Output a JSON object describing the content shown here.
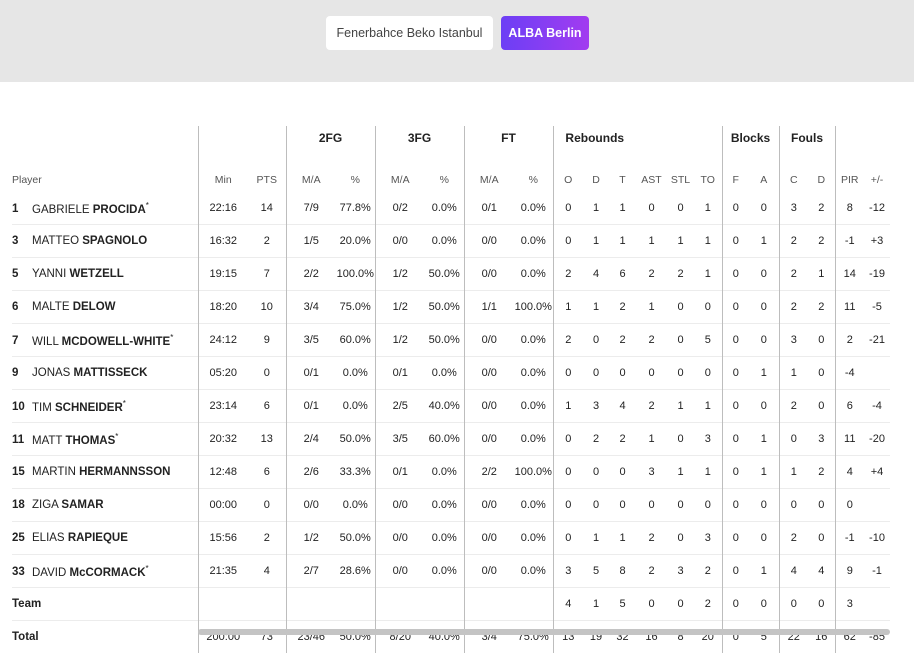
{
  "tabs": [
    {
      "label": "Fenerbahce Beko Istanbul",
      "active": false
    },
    {
      "label": "ALBA Berlin",
      "active": true
    }
  ],
  "accent_color": "#7b3ff2",
  "groups": {
    "fg2": "2FG",
    "fg3": "3FG",
    "ft": "FT",
    "rebounds": "Rebounds",
    "blocks": "Blocks",
    "fouls": "Fouls"
  },
  "columns": {
    "player": "Player",
    "min": "Min",
    "pts": "PTS",
    "fg2_ma": "M/A",
    "fg2_pct": "%",
    "fg3_ma": "M/A",
    "fg3_pct": "%",
    "ft_ma": "M/A",
    "ft_pct": "%",
    "o": "O",
    "d": "D",
    "t": "T",
    "ast": "AST",
    "stl": "STL",
    "to": "TO",
    "bf": "F",
    "ba": "A",
    "fc": "C",
    "fd": "D",
    "pir": "PIR",
    "pm": "+/-"
  },
  "players": [
    {
      "num": "1",
      "first": "GABRIELE",
      "last": "PROCIDA",
      "star": true,
      "min": "22:16",
      "pts": "14",
      "fg2": "7/9",
      "fg2p": "77.8%",
      "fg3": "0/2",
      "fg3p": "0.0%",
      "ft": "0/1",
      "ftp": "0.0%",
      "o": "0",
      "d": "1",
      "t": "1",
      "ast": "0",
      "stl": "0",
      "to": "1",
      "bf": "0",
      "ba": "0",
      "fc": "3",
      "fd": "2",
      "pir": "8",
      "pm": "-12"
    },
    {
      "num": "3",
      "first": "MATTEO",
      "last": "SPAGNOLO",
      "star": false,
      "min": "16:32",
      "pts": "2",
      "fg2": "1/5",
      "fg2p": "20.0%",
      "fg3": "0/0",
      "fg3p": "0.0%",
      "ft": "0/0",
      "ftp": "0.0%",
      "o": "0",
      "d": "1",
      "t": "1",
      "ast": "1",
      "stl": "1",
      "to": "1",
      "bf": "0",
      "ba": "1",
      "fc": "2",
      "fd": "2",
      "pir": "-1",
      "pm": "+3"
    },
    {
      "num": "5",
      "first": "YANNI",
      "last": "WETZELL",
      "star": false,
      "min": "19:15",
      "pts": "7",
      "fg2": "2/2",
      "fg2p": "100.0%",
      "fg3": "1/2",
      "fg3p": "50.0%",
      "ft": "0/0",
      "ftp": "0.0%",
      "o": "2",
      "d": "4",
      "t": "6",
      "ast": "2",
      "stl": "2",
      "to": "1",
      "bf": "0",
      "ba": "0",
      "fc": "2",
      "fd": "1",
      "pir": "14",
      "pm": "-19"
    },
    {
      "num": "6",
      "first": "MALTE",
      "last": "DELOW",
      "star": false,
      "min": "18:20",
      "pts": "10",
      "fg2": "3/4",
      "fg2p": "75.0%",
      "fg3": "1/2",
      "fg3p": "50.0%",
      "ft": "1/1",
      "ftp": "100.0%",
      "o": "1",
      "d": "1",
      "t": "2",
      "ast": "1",
      "stl": "0",
      "to": "0",
      "bf": "0",
      "ba": "0",
      "fc": "2",
      "fd": "2",
      "pir": "11",
      "pm": "-5"
    },
    {
      "num": "7",
      "first": "WILL",
      "last": "MCDOWELL-WHITE",
      "star": true,
      "min": "24:12",
      "pts": "9",
      "fg2": "3/5",
      "fg2p": "60.0%",
      "fg3": "1/2",
      "fg3p": "50.0%",
      "ft": "0/0",
      "ftp": "0.0%",
      "o": "2",
      "d": "0",
      "t": "2",
      "ast": "2",
      "stl": "0",
      "to": "5",
      "bf": "0",
      "ba": "0",
      "fc": "3",
      "fd": "0",
      "pir": "2",
      "pm": "-21"
    },
    {
      "num": "9",
      "first": "JONAS",
      "last": "MATTISSECK",
      "star": false,
      "min": "05:20",
      "pts": "0",
      "fg2": "0/1",
      "fg2p": "0.0%",
      "fg3": "0/1",
      "fg3p": "0.0%",
      "ft": "0/0",
      "ftp": "0.0%",
      "o": "0",
      "d": "0",
      "t": "0",
      "ast": "0",
      "stl": "0",
      "to": "0",
      "bf": "0",
      "ba": "1",
      "fc": "1",
      "fd": "0",
      "pir": "-4",
      "pm": ""
    },
    {
      "num": "10",
      "first": "TIM",
      "last": "SCHNEIDER",
      "star": true,
      "min": "23:14",
      "pts": "6",
      "fg2": "0/1",
      "fg2p": "0.0%",
      "fg3": "2/5",
      "fg3p": "40.0%",
      "ft": "0/0",
      "ftp": "0.0%",
      "o": "1",
      "d": "3",
      "t": "4",
      "ast": "2",
      "stl": "1",
      "to": "1",
      "bf": "0",
      "ba": "0",
      "fc": "2",
      "fd": "0",
      "pir": "6",
      "pm": "-4"
    },
    {
      "num": "11",
      "first": "MATT",
      "last": "THOMAS",
      "star": true,
      "min": "20:32",
      "pts": "13",
      "fg2": "2/4",
      "fg2p": "50.0%",
      "fg3": "3/5",
      "fg3p": "60.0%",
      "ft": "0/0",
      "ftp": "0.0%",
      "o": "0",
      "d": "2",
      "t": "2",
      "ast": "1",
      "stl": "0",
      "to": "3",
      "bf": "0",
      "ba": "1",
      "fc": "0",
      "fd": "3",
      "pir": "11",
      "pm": "-20"
    },
    {
      "num": "15",
      "first": "MARTIN",
      "last": "HERMANNSSON",
      "star": false,
      "min": "12:48",
      "pts": "6",
      "fg2": "2/6",
      "fg2p": "33.3%",
      "fg3": "0/1",
      "fg3p": "0.0%",
      "ft": "2/2",
      "ftp": "100.0%",
      "o": "0",
      "d": "0",
      "t": "0",
      "ast": "3",
      "stl": "1",
      "to": "1",
      "bf": "0",
      "ba": "1",
      "fc": "1",
      "fd": "2",
      "pir": "4",
      "pm": "+4"
    },
    {
      "num": "18",
      "first": "ZIGA",
      "last": "SAMAR",
      "star": false,
      "min": "00:00",
      "pts": "0",
      "fg2": "0/0",
      "fg2p": "0.0%",
      "fg3": "0/0",
      "fg3p": "0.0%",
      "ft": "0/0",
      "ftp": "0.0%",
      "o": "0",
      "d": "0",
      "t": "0",
      "ast": "0",
      "stl": "0",
      "to": "0",
      "bf": "0",
      "ba": "0",
      "fc": "0",
      "fd": "0",
      "pir": "0",
      "pm": ""
    },
    {
      "num": "25",
      "first": "ELIAS",
      "last": "RAPIEQUE",
      "star": false,
      "min": "15:56",
      "pts": "2",
      "fg2": "1/2",
      "fg2p": "50.0%",
      "fg3": "0/0",
      "fg3p": "0.0%",
      "ft": "0/0",
      "ftp": "0.0%",
      "o": "0",
      "d": "1",
      "t": "1",
      "ast": "2",
      "stl": "0",
      "to": "3",
      "bf": "0",
      "ba": "0",
      "fc": "2",
      "fd": "0",
      "pir": "-1",
      "pm": "-10"
    },
    {
      "num": "33",
      "first": "DAVID",
      "last": "McCORMACK",
      "star": true,
      "min": "21:35",
      "pts": "4",
      "fg2": "2/7",
      "fg2p": "28.6%",
      "fg3": "0/0",
      "fg3p": "0.0%",
      "ft": "0/0",
      "ftp": "0.0%",
      "o": "3",
      "d": "5",
      "t": "8",
      "ast": "2",
      "stl": "3",
      "to": "2",
      "bf": "0",
      "ba": "1",
      "fc": "4",
      "fd": "4",
      "pir": "9",
      "pm": "-1"
    }
  ],
  "team": {
    "label": "Team",
    "min": "",
    "pts": "",
    "fg2": "",
    "fg2p": "",
    "fg3": "",
    "fg3p": "",
    "ft": "",
    "ftp": "",
    "o": "4",
    "d": "1",
    "t": "5",
    "ast": "0",
    "stl": "0",
    "to": "2",
    "bf": "0",
    "ba": "0",
    "fc": "0",
    "fd": "0",
    "pir": "3",
    "pm": ""
  },
  "total": {
    "label": "Total",
    "min": "200:00",
    "pts": "73",
    "fg2": "23/46",
    "fg2p": "50.0%",
    "fg3": "8/20",
    "fg3p": "40.0%",
    "ft": "3/4",
    "ftp": "75.0%",
    "o": "13",
    "d": "19",
    "t": "32",
    "ast": "16",
    "stl": "8",
    "to": "20",
    "bf": "0",
    "ba": "5",
    "fc": "22",
    "fd": "16",
    "pir": "62",
    "pm": "-85"
  },
  "star_symbol": "*"
}
